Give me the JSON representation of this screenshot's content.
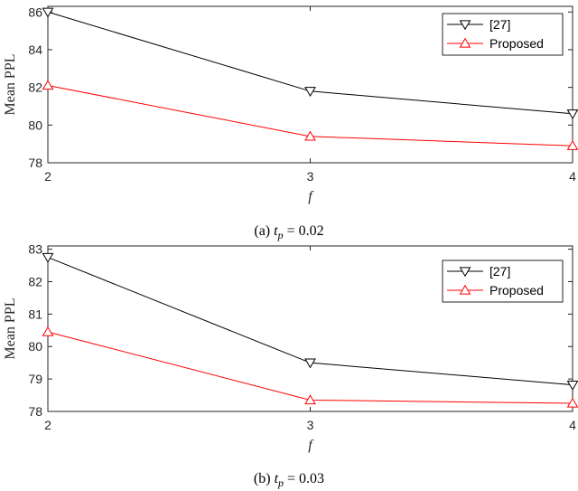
{
  "chart_data": [
    {
      "type": "line",
      "caption_prefix": "(a) ",
      "caption_var": "t",
      "caption_sub": "p",
      "caption_suffix": " = 0.02",
      "xlabel": "f",
      "ylabel": "Mean PPL",
      "x": [
        2,
        3,
        4
      ],
      "xticks": [
        "2",
        "3",
        "4"
      ],
      "xlim": [
        2,
        4
      ],
      "ylim": [
        78,
        86.3
      ],
      "yticks": [
        "78",
        "80",
        "82",
        "84",
        "86"
      ],
      "series": [
        {
          "name": "[27]",
          "color": "#000000",
          "marker": "triangle-down",
          "values": [
            86.0,
            81.8,
            80.6
          ]
        },
        {
          "name": "Proposed",
          "color": "#ff0000",
          "marker": "triangle-up",
          "values": [
            82.1,
            79.4,
            78.9
          ]
        }
      ],
      "legend": "top-right",
      "grid": false
    },
    {
      "type": "line",
      "caption_prefix": "(b) ",
      "caption_var": "t",
      "caption_sub": "p",
      "caption_suffix": " = 0.03",
      "xlabel": "f",
      "ylabel": "Mean PPL",
      "x": [
        2,
        3,
        4
      ],
      "xticks": [
        "2",
        "3",
        "4"
      ],
      "xlim": [
        2,
        4
      ],
      "ylim": [
        78,
        83.1
      ],
      "yticks": [
        "78",
        "79",
        "80",
        "81",
        "82",
        "83"
      ],
      "series": [
        {
          "name": "[27]",
          "color": "#000000",
          "marker": "triangle-down",
          "values": [
            82.75,
            79.5,
            78.82
          ]
        },
        {
          "name": "Proposed",
          "color": "#ff0000",
          "marker": "triangle-up",
          "values": [
            80.45,
            78.35,
            78.25
          ]
        }
      ],
      "legend": "top-right",
      "grid": false
    }
  ]
}
